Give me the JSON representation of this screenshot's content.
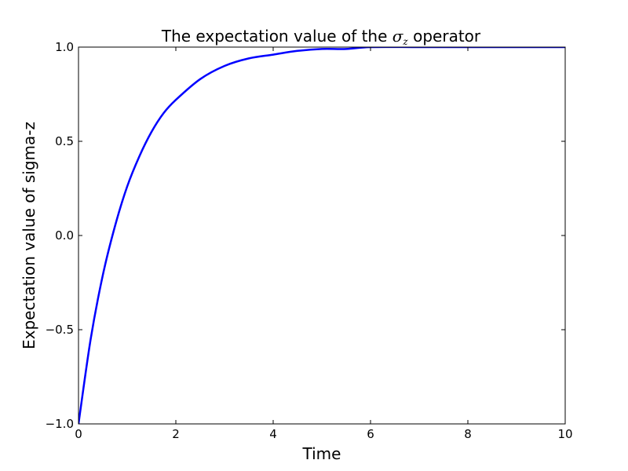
{
  "chart_data": {
    "type": "line",
    "title": {
      "prefix": "The expectation value of the ",
      "symbol": "σ",
      "subscript": "z",
      "suffix": " operator"
    },
    "xlabel": "Time",
    "ylabel": "Expectation value of sigma-z",
    "xlim": [
      0,
      10
    ],
    "ylim": [
      -1.0,
      1.0
    ],
    "xticks": [
      0,
      2,
      4,
      6,
      8,
      10
    ],
    "xtick_labels": [
      "0",
      "2",
      "4",
      "6",
      "8",
      "10"
    ],
    "yticks": [
      -1.0,
      -0.5,
      0.0,
      0.5,
      1.0
    ],
    "ytick_labels": [
      "−1.0",
      "−0.5",
      "0.0",
      "0.5",
      "1.0"
    ],
    "grid": false,
    "series": [
      {
        "color": "#0000ff",
        "x": [
          0,
          0.25,
          0.5,
          0.75,
          1.0,
          1.25,
          1.5,
          1.75,
          2.0,
          2.5,
          3.0,
          3.5,
          4.0,
          4.5,
          5.0,
          5.5,
          6.0,
          7.0,
          8.0,
          9.0,
          10.0
        ],
        "y": [
          -1.0,
          -0.55,
          -0.21,
          0.05,
          0.26,
          0.42,
          0.55,
          0.65,
          0.72,
          0.83,
          0.9,
          0.94,
          0.96,
          0.98,
          0.99,
          0.99,
          1.0,
          1.0,
          1.0,
          1.0,
          1.0
        ]
      }
    ]
  }
}
